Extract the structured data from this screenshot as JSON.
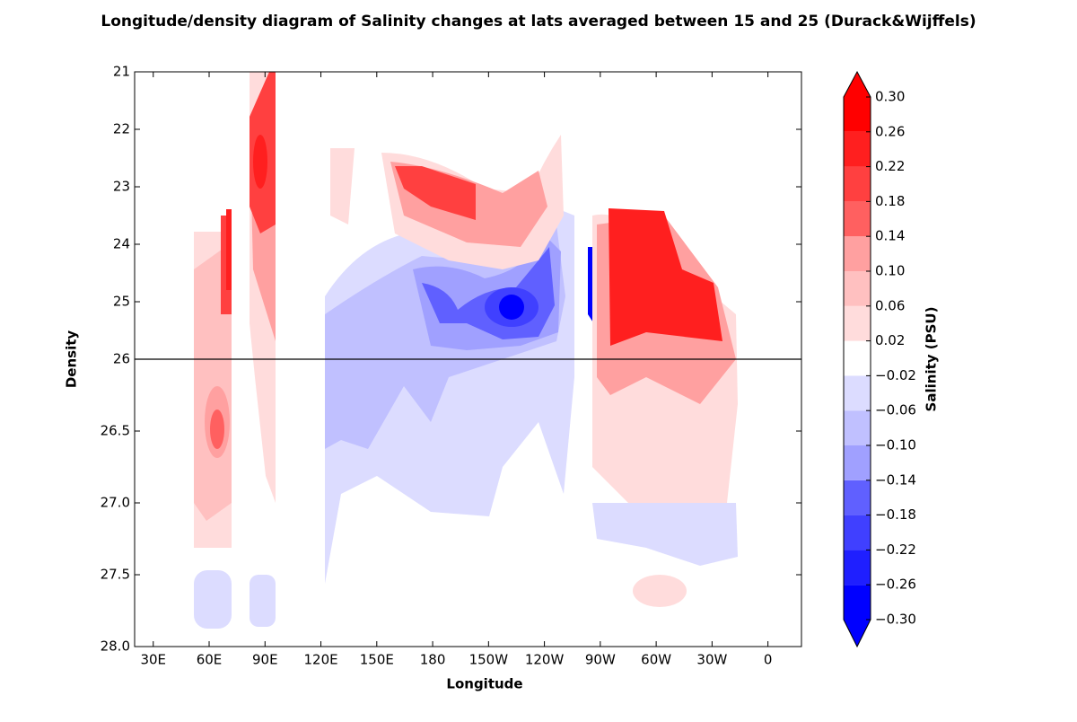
{
  "chart_data": {
    "type": "contour",
    "title": "Longitude/density diagram of Salinity changes at lats averaged between 15 and 25 (Durack&Wijffels)",
    "x_label": "Longitude",
    "y_label": "Density",
    "xlim": [
      20,
      378
    ],
    "xticks": [
      {
        "value": 30,
        "label": "30E"
      },
      {
        "value": 60,
        "label": "60E"
      },
      {
        "value": 90,
        "label": "90E"
      },
      {
        "value": 120,
        "label": "120E"
      },
      {
        "value": 150,
        "label": "150E"
      },
      180,
      {
        "value": 210,
        "label": "150W"
      },
      {
        "value": 240,
        "label": "120W"
      },
      {
        "value": 270,
        "label": "90W"
      },
      {
        "value": 300,
        "label": "60W"
      },
      {
        "value": 330,
        "label": "30W"
      },
      {
        "value": 360,
        "label": "0"
      }
    ],
    "ylim": [
      21,
      28
    ],
    "yticks": [
      21,
      22,
      23,
      24,
      25,
      26,
      26.5,
      {
        "value": 27,
        "label": "27.0"
      },
      27.5,
      {
        "value": 28,
        "label": "28.0"
      }
    ],
    "hline": 26,
    "colorbar": {
      "label": "Salinity (PSU)",
      "ticks": [
        {
          "value": -0.3,
          "label": "−0.30"
        },
        {
          "value": -0.26,
          "label": "−0.26"
        },
        {
          "value": -0.22,
          "label": "−0.22"
        },
        {
          "value": -0.18,
          "label": "−0.18"
        },
        {
          "value": -0.14,
          "label": "−0.14"
        },
        {
          "value": -0.1,
          "label": "−0.10"
        },
        {
          "value": -0.06,
          "label": "−0.06"
        },
        {
          "value": -0.02,
          "label": "−0.02"
        },
        {
          "value": 0.02,
          "label": "0.02"
        },
        {
          "value": 0.06,
          "label": "0.06"
        },
        {
          "value": 0.1,
          "label": "0.10"
        },
        {
          "value": 0.14,
          "label": "0.14"
        },
        {
          "value": 0.18,
          "label": "0.18"
        },
        {
          "value": 0.22,
          "label": "0.22"
        },
        {
          "value": 0.26,
          "label": "0.26"
        },
        {
          "value": 0.3,
          "label": "0.30"
        }
      ],
      "colors": [
        "#0000ff",
        "#1f1fff",
        "#4040ff",
        "#6060ff",
        "#a0a0ff",
        "#c0c0ff",
        "#dcdcff",
        "#ffffff",
        "#ffdcdc",
        "#ffc0c0",
        "#ffa0a0",
        "#ff6060",
        "#ff4040",
        "#ff1f1f",
        "#ff0000"
      ],
      "under_color": "#0000ff",
      "over_color": "#ff0000"
    }
  }
}
